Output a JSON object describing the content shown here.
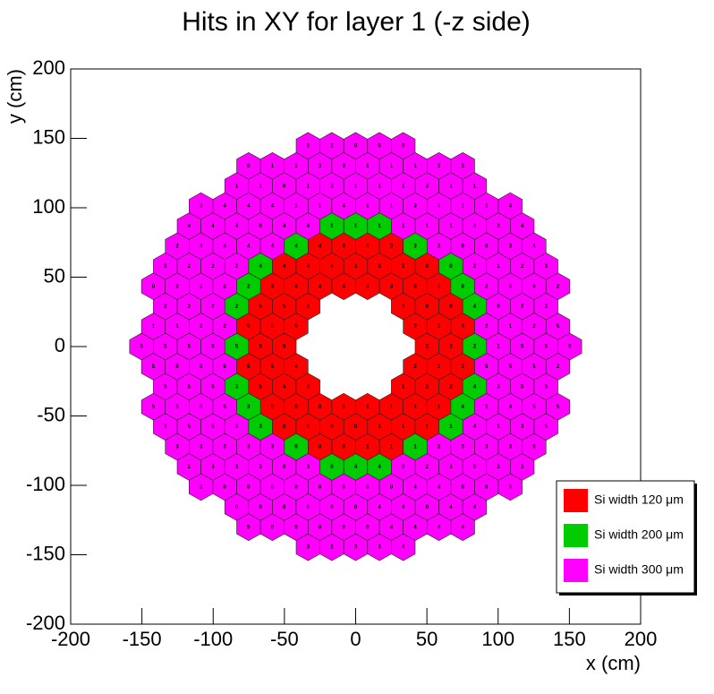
{
  "chart_data": {
    "type": "hexmap",
    "title": "Hits in XY for layer 1 (-z side)",
    "x_label": "x (cm)",
    "y_label": "y (cm)",
    "xlim": [
      -200,
      200
    ],
    "ylim": [
      -200,
      200
    ],
    "xticks": [
      -200,
      -150,
      -100,
      -50,
      0,
      50,
      100,
      150,
      200
    ],
    "yticks": [
      -200,
      -150,
      -100,
      -50,
      0,
      50,
      100,
      150,
      200
    ],
    "legend": "bottom right",
    "series": [
      {
        "name": "Si width 120 μm",
        "color": "#ff0000",
        "x": [
          -25.05,
          -8.35,
          8.35,
          25.05,
          -50.1,
          -33.4,
          -16.7,
          0,
          16.7,
          33.4,
          50.1,
          -58.45,
          -41.75,
          -25.05,
          -8.35,
          8.35,
          25.05,
          41.75,
          58.45,
          -66.8,
          -50.1,
          -33.4,
          33.4,
          50.1,
          66.8,
          -75.15,
          -58.45,
          -41.75,
          41.75,
          58.45,
          75.15,
          -66.8,
          -50.1,
          50.1,
          66.8,
          -75.15,
          -58.45,
          -41.75,
          41.75,
          58.45,
          75.15,
          -66.8,
          -50.1,
          -33.4,
          33.4,
          50.1,
          66.8,
          -58.45,
          -41.75,
          -25.05,
          -8.35,
          8.35,
          25.05,
          41.75,
          58.45,
          -50.1,
          -33.4,
          -16.7,
          0,
          16.7,
          33.4,
          50.1,
          -25.05,
          -8.35,
          8.35,
          25.05
        ],
        "y": [
          72.3,
          72.3,
          72.3,
          72.3,
          57.84,
          57.84,
          57.84,
          57.84,
          57.84,
          57.84,
          57.84,
          43.38,
          43.38,
          43.38,
          43.38,
          43.38,
          43.38,
          43.38,
          43.38,
          28.92,
          28.92,
          28.92,
          28.92,
          28.92,
          28.92,
          14.46,
          14.46,
          14.46,
          14.46,
          14.46,
          14.46,
          0,
          0,
          0,
          0,
          -14.46,
          -14.46,
          -14.46,
          -14.46,
          -14.46,
          -14.46,
          -28.92,
          -28.92,
          -28.92,
          -28.92,
          -28.92,
          -28.92,
          -43.38,
          -43.38,
          -43.38,
          -43.38,
          -43.38,
          -43.38,
          -43.38,
          -43.38,
          -57.84,
          -57.84,
          -57.84,
          -57.84,
          -57.84,
          -57.84,
          -57.84,
          -72.3,
          -72.3,
          -72.3,
          -72.3
        ],
        "labels": [
          4,
          4,
          4,
          3,
          4,
          4,
          4,
          3,
          3,
          2,
          0,
          4,
          4,
          4,
          4,
          3,
          3,
          0,
          0,
          5,
          5,
          3,
          3,
          0,
          0,
          5,
          5,
          5,
          2,
          2,
          3,
          5,
          5,
          2,
          2,
          5,
          5,
          4,
          2,
          2,
          3,
          5,
          4,
          3,
          1,
          2,
          2,
          0,
          0,
          0,
          5,
          1,
          1,
          1,
          1,
          0,
          0,
          0,
          0,
          1,
          1,
          1,
          0,
          0,
          1,
          1
        ]
      },
      {
        "name": "Si width 200 μm",
        "color": "#00cc00",
        "x": [
          -16.7,
          0,
          16.7,
          -41.75,
          41.75,
          -66.8,
          66.8,
          -75.15,
          75.15,
          -83.5,
          83.5,
          -83.5,
          83.5,
          -83.5,
          83.5,
          -75.15,
          75.15,
          -66.8,
          66.8,
          -41.75,
          41.75,
          -16.7,
          0,
          16.7
        ],
        "y": [
          86.76,
          86.76,
          86.76,
          72.3,
          72.3,
          57.84,
          57.84,
          43.38,
          43.38,
          28.92,
          28.92,
          0,
          0,
          -28.92,
          -28.92,
          -43.38,
          -43.38,
          -57.84,
          -57.84,
          -72.3,
          -72.3,
          -86.76,
          -86.76,
          -86.76
        ],
        "labels": [
          1,
          1,
          1,
          4,
          3,
          4,
          0,
          2,
          0,
          2,
          4,
          5,
          2,
          3,
          4,
          3,
          4,
          3,
          1,
          0,
          1,
          0,
          4,
          4
        ]
      },
      {
        "name": "Si width 300 μm",
        "color": "#ff00ff",
        "x": [
          -33.4,
          -16.7,
          0,
          16.7,
          33.4,
          -75.15,
          -58.45,
          -41.75,
          -25.05,
          -8.35,
          8.35,
          25.05,
          41.75,
          58.45,
          75.15,
          -83.5,
          -66.8,
          -50.1,
          -33.4,
          -16.7,
          0,
          16.7,
          33.4,
          50.1,
          66.8,
          83.5,
          -108.55,
          -91.85,
          -75.15,
          -58.45,
          -41.75,
          -25.05,
          -8.35,
          8.35,
          25.05,
          41.75,
          58.45,
          75.15,
          91.85,
          108.55,
          -116.9,
          -100.2,
          -83.5,
          -66.8,
          -50.1,
          -33.4,
          33.4,
          50.1,
          66.8,
          83.5,
          100.2,
          116.9,
          -125.25,
          -108.55,
          -91.85,
          -75.15,
          -58.45,
          58.45,
          75.15,
          91.85,
          108.55,
          125.25,
          -133.6,
          -116.9,
          -100.2,
          -83.5,
          83.5,
          100.2,
          116.9,
          133.6,
          -141.95,
          -125.25,
          -108.55,
          -91.85,
          91.85,
          108.55,
          125.25,
          141.95,
          -133.6,
          -116.9,
          -100.2,
          100.2,
          116.9,
          133.6,
          -141.95,
          -125.25,
          -108.55,
          -91.85,
          91.85,
          108.55,
          125.25,
          141.95,
          -150.3,
          -133.6,
          -116.9,
          -100.2,
          100.2,
          116.9,
          133.6,
          150.3,
          -141.95,
          -125.25,
          -108.55,
          -91.85,
          91.85,
          108.55,
          125.25,
          141.95,
          -133.6,
          -116.9,
          -100.2,
          100.2,
          116.9,
          133.6,
          -141.95,
          -125.25,
          -108.55,
          -91.85,
          91.85,
          108.55,
          125.25,
          141.95,
          -133.6,
          -116.9,
          -100.2,
          -83.5,
          83.5,
          100.2,
          116.9,
          133.6,
          -125.25,
          -108.55,
          -91.85,
          -75.15,
          -58.45,
          58.45,
          75.15,
          91.85,
          108.55,
          125.25,
          -116.9,
          -100.2,
          -83.5,
          -66.8,
          -50.1,
          -33.4,
          33.4,
          50.1,
          66.8,
          83.5,
          100.2,
          116.9,
          -108.55,
          -91.85,
          -75.15,
          -58.45,
          -41.75,
          -25.05,
          -8.35,
          8.35,
          25.05,
          41.75,
          58.45,
          75.15,
          91.85,
          108.55,
          -83.5,
          -66.8,
          -50.1,
          -33.4,
          -16.7,
          0,
          16.7,
          33.4,
          50.1,
          66.8,
          83.5,
          -75.15,
          -58.45,
          -41.75,
          -25.05,
          -8.35,
          8.35,
          25.05,
          41.75,
          58.45,
          75.15,
          -33.4,
          -16.7,
          0,
          16.7,
          33.4
        ],
        "y": [
          144.6,
          144.6,
          144.6,
          144.6,
          144.6,
          130.14,
          130.14,
          130.14,
          130.14,
          130.14,
          130.14,
          130.14,
          130.14,
          130.14,
          130.14,
          115.68,
          115.68,
          115.68,
          115.68,
          115.68,
          115.68,
          115.68,
          115.68,
          115.68,
          115.68,
          115.68,
          101.22,
          101.22,
          101.22,
          101.22,
          101.22,
          101.22,
          101.22,
          101.22,
          101.22,
          101.22,
          101.22,
          101.22,
          101.22,
          101.22,
          86.76,
          86.76,
          86.76,
          86.76,
          86.76,
          86.76,
          86.76,
          86.76,
          86.76,
          86.76,
          86.76,
          86.76,
          72.3,
          72.3,
          72.3,
          72.3,
          72.3,
          72.3,
          72.3,
          72.3,
          72.3,
          72.3,
          57.84,
          57.84,
          57.84,
          57.84,
          57.84,
          57.84,
          57.84,
          57.84,
          43.38,
          43.38,
          43.38,
          43.38,
          43.38,
          43.38,
          43.38,
          43.38,
          28.92,
          28.92,
          28.92,
          28.92,
          28.92,
          28.92,
          14.46,
          14.46,
          14.46,
          14.46,
          14.46,
          14.46,
          14.46,
          14.46,
          0,
          0,
          0,
          0,
          0,
          0,
          0,
          0,
          -14.46,
          -14.46,
          -14.46,
          -14.46,
          -14.46,
          -14.46,
          -14.46,
          -14.46,
          -28.92,
          -28.92,
          -28.92,
          -28.92,
          -28.92,
          -28.92,
          -43.38,
          -43.38,
          -43.38,
          -43.38,
          -43.38,
          -43.38,
          -43.38,
          -43.38,
          -57.84,
          -57.84,
          -57.84,
          -57.84,
          -57.84,
          -57.84,
          -57.84,
          -57.84,
          -72.3,
          -72.3,
          -72.3,
          -72.3,
          -72.3,
          -72.3,
          -72.3,
          -72.3,
          -72.3,
          -72.3,
          -86.76,
          -86.76,
          -86.76,
          -86.76,
          -86.76,
          -86.76,
          -86.76,
          -86.76,
          -86.76,
          -86.76,
          -86.76,
          -86.76,
          -101.22,
          -101.22,
          -101.22,
          -101.22,
          -101.22,
          -101.22,
          -101.22,
          -101.22,
          -101.22,
          -101.22,
          -101.22,
          -101.22,
          -101.22,
          -101.22,
          -115.68,
          -115.68,
          -115.68,
          -115.68,
          -115.68,
          -115.68,
          -115.68,
          -115.68,
          -115.68,
          -115.68,
          -115.68,
          -130.14,
          -130.14,
          -130.14,
          -130.14,
          -130.14,
          -130.14,
          -130.14,
          -130.14,
          -130.14,
          -130.14,
          -144.6,
          -144.6,
          -144.6,
          -144.6,
          -144.6
        ],
        "labels": [
          5,
          1,
          0,
          5,
          0,
          0,
          1,
          1,
          3,
          3,
          1,
          1,
          1,
          3,
          3,
          1,
          1,
          0,
          1,
          3,
          1,
          1,
          1,
          3,
          1,
          1,
          3,
          4,
          4,
          4,
          1,
          1,
          4,
          1,
          1,
          3,
          3,
          1,
          1,
          4,
          4,
          4,
          4,
          0,
          4,
          4,
          1,
          1,
          1,
          3,
          3,
          4,
          2,
          4,
          4,
          4,
          4,
          3,
          0,
          0,
          3,
          4,
          0,
          2,
          2,
          2,
          2,
          1,
          2,
          3,
          0,
          2,
          2,
          2,
          2,
          0,
          0,
          2,
          2,
          2,
          2,
          0,
          2,
          2,
          1,
          1,
          2,
          2,
          2,
          1,
          2,
          5,
          5,
          5,
          5,
          5,
          1,
          5,
          5,
          0,
          5,
          5,
          5,
          5,
          5,
          5,
          5,
          2,
          5,
          5,
          5,
          3,
          5,
          5,
          5,
          5,
          5,
          5,
          1,
          4,
          5,
          5,
          3,
          5,
          5,
          3,
          4,
          1,
          3,
          5,
          3,
          3,
          3,
          3,
          3,
          2,
          3,
          3,
          3,
          0,
          2,
          3,
          3,
          3,
          0,
          3,
          0,
          2,
          3,
          0,
          3,
          3,
          2,
          0,
          0,
          0,
          0,
          0,
          0,
          0,
          0,
          4,
          4,
          0,
          0,
          0,
          0,
          0,
          0,
          0,
          0,
          0,
          4,
          4,
          0,
          4,
          4,
          5,
          0,
          0,
          0,
          0,
          0,
          4,
          4,
          4,
          4,
          3,
          2,
          3,
          3,
          4
        ]
      }
    ]
  }
}
